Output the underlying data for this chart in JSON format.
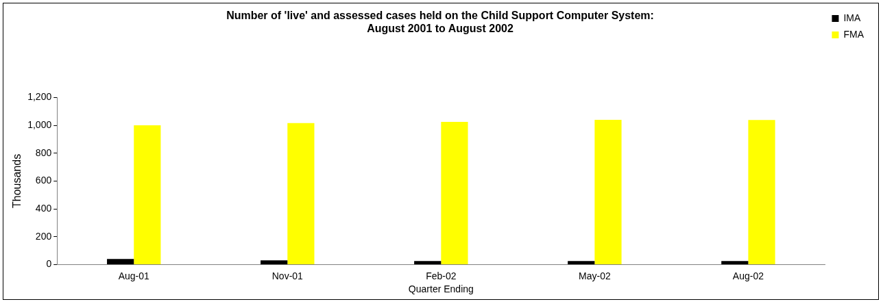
{
  "chart_data": {
    "type": "bar",
    "title": "Number of 'live' and assessed cases held on the Child Support Computer System: August 2001 to August 2002",
    "xlabel": "Quarter Ending",
    "ylabel": "Thousands",
    "categories": [
      "Aug-01",
      "Nov-01",
      "Feb-02",
      "May-02",
      "Aug-02"
    ],
    "series": [
      {
        "name": "IMA",
        "color": "#000000",
        "values": [
          40,
          30,
          25,
          25,
          25
        ]
      },
      {
        "name": "FMA",
        "color": "#ffff00",
        "values": [
          1000,
          1016,
          1025,
          1040,
          1038
        ]
      }
    ],
    "ylim": [
      0,
      1200
    ],
    "yticks": [
      0,
      {
        "value": 200,
        "label": "200"
      },
      {
        "value": 400,
        "label": "400"
      },
      {
        "value": 600,
        "label": "600"
      },
      {
        "value": 800,
        "label": "800"
      },
      {
        "value": 1000,
        "label": "1,000"
      },
      {
        "value": 1200,
        "label": "1,200"
      }
    ],
    "grid": false,
    "legend": "right"
  }
}
